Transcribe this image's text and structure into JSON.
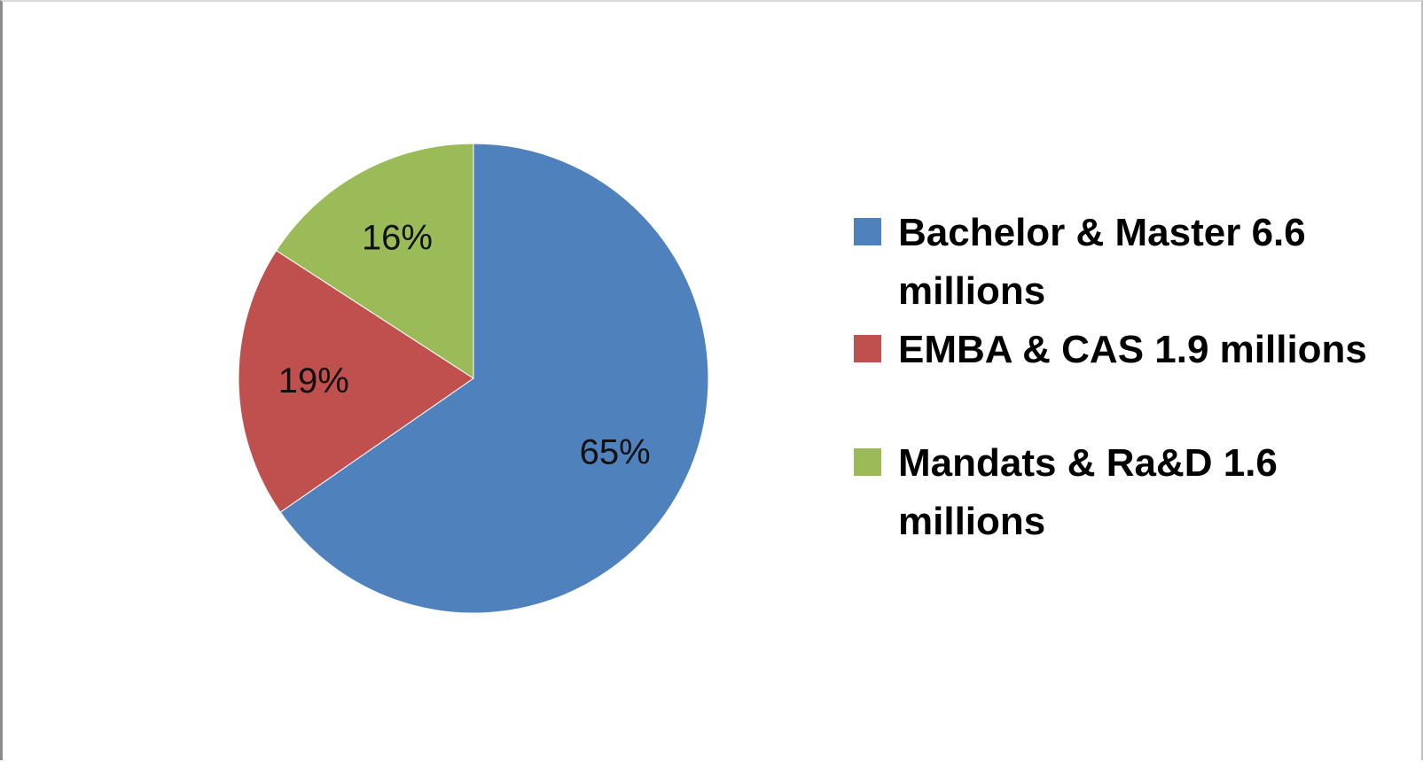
{
  "chart_data": {
    "type": "pie",
    "title": "",
    "slices": [
      {
        "label": "Bachelor & Master 6.6 millions",
        "value": 6.6,
        "percent_label": "65%",
        "color": "#4F81BD"
      },
      {
        "label": "EMBA & CAS 1.9 millions",
        "value": 1.9,
        "percent_label": "19%",
        "color": "#C0504D"
      },
      {
        "label": "Mandats & Ra&D 1.6 millions",
        "value": 1.6,
        "percent_label": "16%",
        "color": "#9BBB59"
      }
    ],
    "start_angle": "12 o'clock",
    "direction": "clockwise",
    "legend_position": "right"
  },
  "legend": {
    "items": [
      {
        "text": "Bachelor & Master 6.6 millions",
        "color": "#4F81BD"
      },
      {
        "text": "EMBA & CAS 1.9 millions",
        "color": "#C0504D"
      },
      {
        "text": "Mandats & Ra&D 1.6 millions",
        "color": "#9BBB59"
      }
    ]
  }
}
